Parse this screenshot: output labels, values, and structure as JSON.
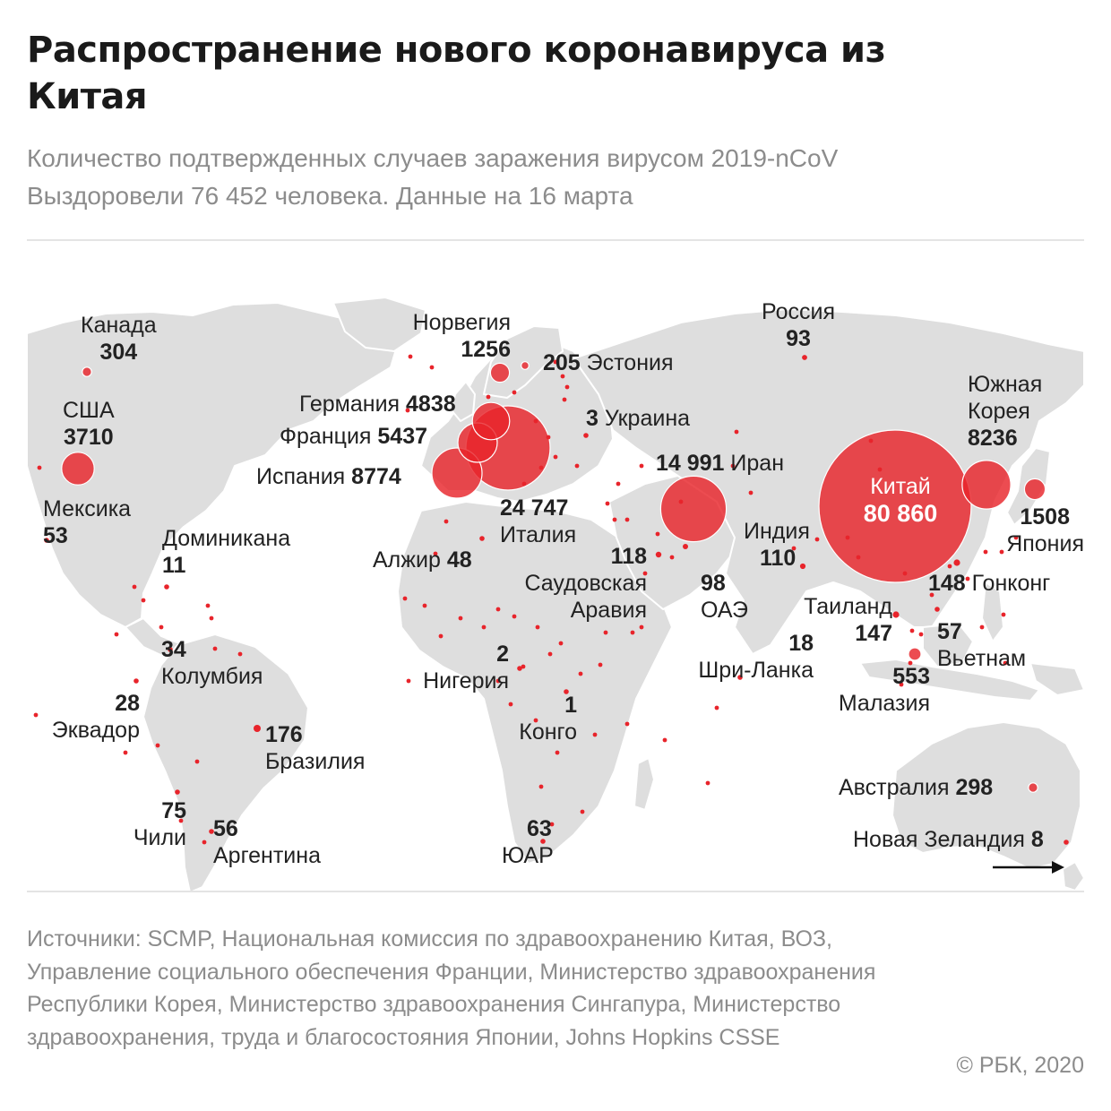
{
  "header": {
    "title": "Распространение нового коронавируса из Китая",
    "subtitle_line1": "Количество подтвержденных случаев заражения вирусом 2019-nCoV",
    "subtitle_line2": "Выздоровели 76 452 человека. Данные на 16 марта"
  },
  "map": {
    "bubble_color": "#e8242b",
    "land_color": "#dedede",
    "countries": [
      {
        "name": "Канада",
        "value": "304",
        "cases": 304
      },
      {
        "name": "США",
        "value": "3710",
        "cases": 3710
      },
      {
        "name": "Мексика",
        "value": "53",
        "cases": 53
      },
      {
        "name": "Доминикана",
        "value": "11",
        "cases": 11
      },
      {
        "name": "Колумбия",
        "value": "34",
        "cases": 34
      },
      {
        "name": "Эквадор",
        "value": "28",
        "cases": 28
      },
      {
        "name": "Бразилия",
        "value": "176",
        "cases": 176
      },
      {
        "name": "Чили",
        "value": "75",
        "cases": 75
      },
      {
        "name": "Аргентина",
        "value": "56",
        "cases": 56
      },
      {
        "name": "Норвегия",
        "value": "1256",
        "cases": 1256
      },
      {
        "name": "Эстония",
        "value": "205",
        "cases": 205
      },
      {
        "name": "Германия",
        "value": "4838",
        "cases": 4838
      },
      {
        "name": "Франция",
        "value": "5437",
        "cases": 5437
      },
      {
        "name": "Испания",
        "value": "8774",
        "cases": 8774
      },
      {
        "name": "Италия",
        "value": "24 747",
        "cases": 24747
      },
      {
        "name": "Украина",
        "value": "3",
        "cases": 3
      },
      {
        "name": "Алжир",
        "value": "48",
        "cases": 48
      },
      {
        "name": "Нигерия",
        "value": "2",
        "cases": 2
      },
      {
        "name": "Конго",
        "value": "1",
        "cases": 1
      },
      {
        "name": "ЮАР",
        "value": "63",
        "cases": 63
      },
      {
        "name": "Иран",
        "value": "14 991",
        "cases": 14991
      },
      {
        "name": "Саудовская Аравия",
        "value": "118",
        "cases": 118
      },
      {
        "name": "ОАЭ",
        "value": "98",
        "cases": 98
      },
      {
        "name": "Россия",
        "value": "93",
        "cases": 93
      },
      {
        "name": "Индия",
        "value": "110",
        "cases": 110
      },
      {
        "name": "Шри-Ланка",
        "value": "18",
        "cases": 18
      },
      {
        "name": "Китай",
        "value": "80 860",
        "cases": 80860
      },
      {
        "name": "Южная Корея",
        "value": "8236",
        "cases": 8236
      },
      {
        "name": "Япония",
        "value": "1508",
        "cases": 1508
      },
      {
        "name": "Гонконг",
        "value": "148",
        "cases": 148
      },
      {
        "name": "Таиланд",
        "value": "147",
        "cases": 147
      },
      {
        "name": "Вьетнам",
        "value": "57",
        "cases": 57
      },
      {
        "name": "Малазия",
        "value": "553",
        "cases": 553
      },
      {
        "name": "Австралия",
        "value": "298",
        "cases": 298
      },
      {
        "name": "Новая Зеландия",
        "value": "8",
        "cases": 8
      }
    ],
    "labels": {
      "canada": {
        "name": "Канада",
        "value": "304"
      },
      "usa": {
        "name": "США",
        "value": "3710"
      },
      "mexico": {
        "name": "Мексика",
        "value": "53"
      },
      "dominicana": {
        "name": "Доминикана",
        "value": "11"
      },
      "colombia": {
        "name": "Колумбия",
        "value": "34"
      },
      "ecuador": {
        "name": "Эквадор",
        "value": "28"
      },
      "brazil": {
        "name": "Бразилия",
        "value": "176"
      },
      "chile": {
        "name": "Чили",
        "value": "75"
      },
      "argentina": {
        "name": "Аргентина",
        "value": "56"
      },
      "norway": {
        "name": "Норвегия",
        "value": "1256"
      },
      "estonia": {
        "name": "Эстония",
        "value": "205"
      },
      "germany": {
        "name": "Германия",
        "value": "4838"
      },
      "france": {
        "name": "Франция",
        "value": "5437"
      },
      "spain": {
        "name": "Испания",
        "value": "8774"
      },
      "italy": {
        "name": "Италия",
        "value": "24 747"
      },
      "ukraine": {
        "name": "Украина",
        "value": "3"
      },
      "algeria": {
        "name": "Алжир",
        "value": "48"
      },
      "nigeria": {
        "name": "Нигерия",
        "value": "2"
      },
      "congo": {
        "name": "Конго",
        "value": "1"
      },
      "sar": {
        "name": "ЮАР",
        "value": "63"
      },
      "iran": {
        "name": "Иран",
        "value": "14 991"
      },
      "saudi": {
        "name_line1": "Саудовская",
        "name_line2": "Аравия",
        "value": "118"
      },
      "uae": {
        "name": "ОАЭ",
        "value": "98"
      },
      "russia": {
        "name": "Россия",
        "value": "93"
      },
      "india": {
        "name": "Индия",
        "value": "110"
      },
      "srilanka": {
        "name": "Шри-Ланка",
        "value": "18"
      },
      "china": {
        "name": "Китай",
        "value": "80 860"
      },
      "korea": {
        "name_line1": "Южная",
        "name_line2": "Корея",
        "value": "8236"
      },
      "japan": {
        "name": "Япония",
        "value": "1508"
      },
      "hongkong": {
        "name": "Гонконг",
        "value": "148"
      },
      "thailand": {
        "name": "Таиланд",
        "value": "147"
      },
      "vietnam": {
        "name": "Вьетнам",
        "value": "57"
      },
      "malaysia": {
        "name": "Малазия",
        "value": "553"
      },
      "australia": {
        "name": "Австралия",
        "value": "298"
      },
      "newzealand": {
        "name": "Новая Зеландия",
        "value": "8"
      }
    }
  },
  "footer": {
    "sources": "Источники: SCMP, Национальная комиссия по здравоохранению Китая, ВОЗ, Управление социального обеспечения Франции, Министерство здравоохранения Республики Корея, Министерство здравоохранения Сингапура, Министерство здравоохранения, труда и благосостояния Японии, Johns Hopkins CSSE",
    "copyright": "© РБК, 2020"
  }
}
